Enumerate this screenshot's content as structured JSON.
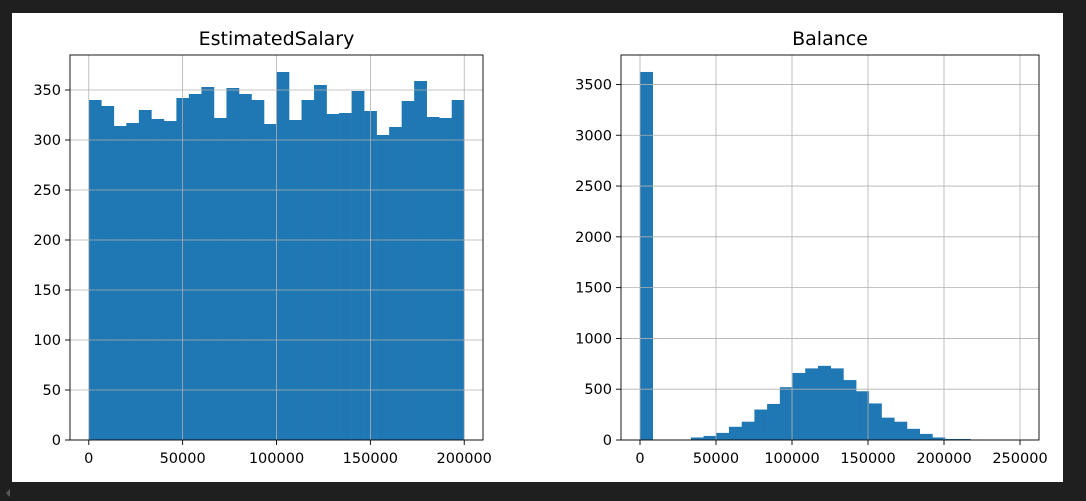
{
  "chart_data": [
    {
      "type": "bar",
      "title": "EstimatedSalary",
      "xlim": [
        -10000,
        210000
      ],
      "ylim": [
        0,
        385
      ],
      "xticks": [
        0,
        50000,
        100000,
        150000,
        200000
      ],
      "xtick_labels": [
        "0",
        "50000",
        "100000",
        "150000",
        "200000"
      ],
      "yticks": [
        0,
        50,
        100,
        150,
        200,
        250,
        300,
        350
      ],
      "ytick_labels": [
        "0",
        "50",
        "100",
        "150",
        "200",
        "250",
        "300",
        "350"
      ],
      "grid": true,
      "bar_color": "#1f77b4",
      "bin_start": 11.58,
      "bin_end": 199992.48,
      "values": [
        340,
        334,
        314,
        317,
        330,
        321,
        319,
        342,
        346,
        353,
        322,
        352,
        346,
        340,
        316,
        368,
        320,
        340,
        355,
        326,
        327,
        349,
        329,
        305,
        313,
        339,
        359,
        323,
        322,
        340
      ]
    },
    {
      "type": "bar",
      "title": "Balance",
      "xlim": [
        -12500,
        262500
      ],
      "ylim": [
        0,
        3790
      ],
      "xticks": [
        0,
        50000,
        100000,
        150000,
        200000,
        250000
      ],
      "xtick_labels": [
        "0",
        "50000",
        "100000",
        "150000",
        "200000",
        "250000"
      ],
      "yticks": [
        0,
        500,
        1000,
        1500,
        2000,
        2500,
        3000,
        3500
      ],
      "ytick_labels": [
        "0",
        "500",
        "1000",
        "1500",
        "2000",
        "2500",
        "3000",
        "3500"
      ],
      "grid": true,
      "bar_color": "#1f77b4",
      "bin_start": 0,
      "bin_end": 250898.09,
      "values": [
        3623,
        0,
        0,
        0,
        25,
        40,
        70,
        130,
        180,
        300,
        355,
        520,
        660,
        705,
        730,
        705,
        590,
        480,
        360,
        220,
        180,
        110,
        60,
        25,
        10,
        10,
        3,
        1,
        0,
        1
      ]
    }
  ]
}
